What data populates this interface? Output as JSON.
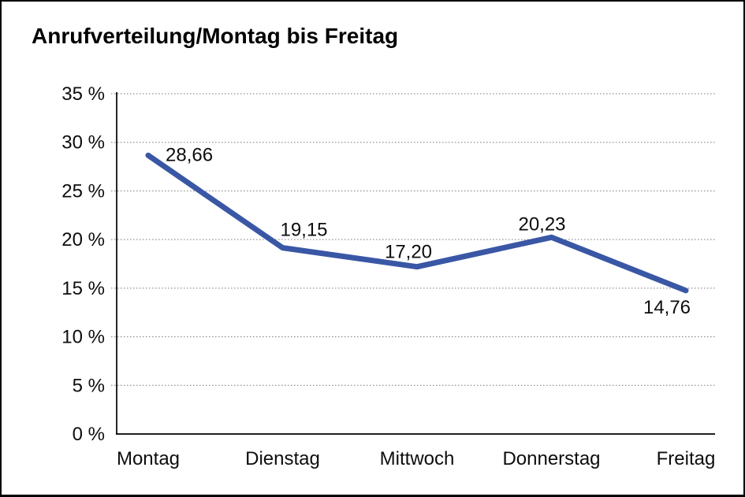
{
  "page": {
    "background_color": "#ffffff",
    "frame_border_color": "#000000"
  },
  "chart_data": {
    "type": "line",
    "title": "Anrufverteilung/Montag bis Freitag",
    "categories": [
      "Montag",
      "Dienstag",
      "Mittwoch",
      "Donnerstag",
      "Freitag"
    ],
    "series": [
      {
        "name": "Anrufverteilung",
        "values": [
          28.66,
          19.15,
          17.2,
          20.23,
          14.76
        ],
        "value_labels": [
          "28,66",
          "19,15",
          "17,20",
          "20,23",
          "14,76"
        ],
        "color": "#3A57A5"
      }
    ],
    "xlabel": "",
    "ylabel": "",
    "ylim": [
      0,
      35
    ],
    "y_tick_step": 5,
    "y_ticks": [
      {
        "value": 35,
        "label": "35 %"
      },
      {
        "value": 30,
        "label": "30 %"
      },
      {
        "value": 25,
        "label": "25 %"
      },
      {
        "value": 20,
        "label": "20 %"
      },
      {
        "value": 15,
        "label": "15 %"
      },
      {
        "value": 10,
        "label": "10 %"
      },
      {
        "value": 5,
        "label": "5 %"
      },
      {
        "value": 0,
        "label": "0 %"
      }
    ],
    "grid": {
      "horizontal": true,
      "style": "dotted",
      "color": "#777777"
    },
    "legend": "none",
    "axis_color": "#000000",
    "line_width": 7
  }
}
